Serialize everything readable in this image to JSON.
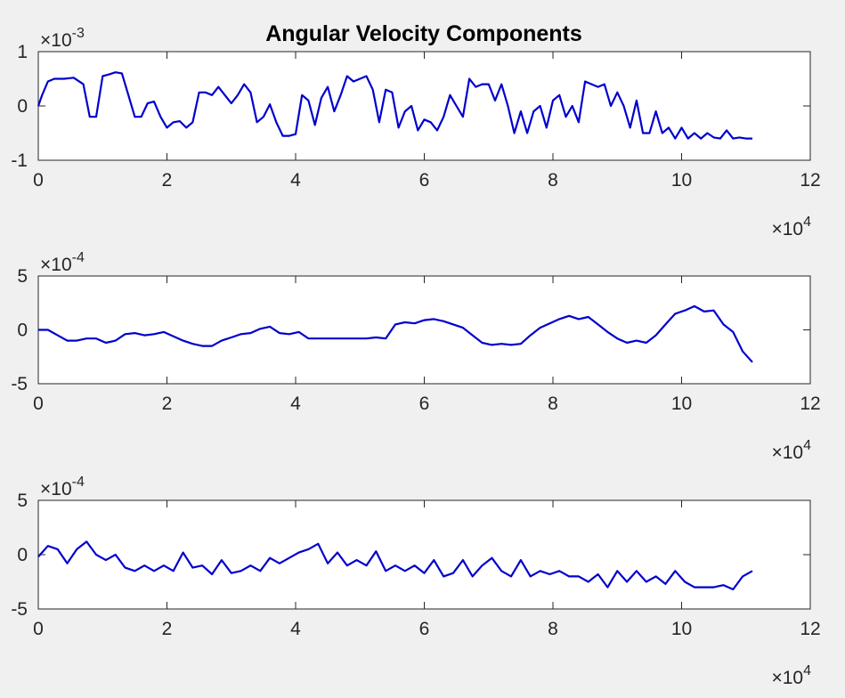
{
  "figure": {
    "background": "#f0f0f0",
    "line_color": "#0000cd",
    "axis_color": "#262626"
  },
  "chart_data": [
    {
      "type": "line",
      "title": "Angular Velocity Components",
      "xlim": [
        0,
        120000
      ],
      "ylim": [
        -0.001,
        0.001
      ],
      "xticks": [
        0,
        20000,
        40000,
        60000,
        80000,
        100000,
        120000
      ],
      "xtick_labels": [
        "0",
        "2",
        "4",
        "6",
        "8",
        "10",
        "12"
      ],
      "x_exponent_label": "×10",
      "x_exponent_power": "4",
      "yticks": [
        -0.001,
        0,
        0.001
      ],
      "ytick_labels": [
        "-1",
        "0",
        "1"
      ],
      "y_exponent_label": "×10",
      "y_exponent_power": "-3",
      "series": [
        {
          "x": [
            0,
            600,
            1500,
            2500,
            4000,
            5500,
            7000,
            8000,
            9000,
            10000,
            11000,
            12000,
            13000,
            14000,
            15000,
            16000,
            17000,
            18000,
            19000,
            20000,
            21000,
            22000,
            23000,
            24000,
            25000,
            26000,
            27000,
            28000,
            29000,
            30000,
            31000,
            32000,
            33000,
            34000,
            35000,
            36000,
            37000,
            38000,
            39000,
            40000,
            41000,
            42000,
            43000,
            44000,
            45000,
            46000,
            47000,
            48000,
            49000,
            50000,
            51000,
            52000,
            53000,
            54000,
            55000,
            56000,
            57000,
            58000,
            59000,
            60000,
            61000,
            62000,
            63000,
            64000,
            65000,
            66000,
            67000,
            68000,
            69000,
            70000,
            71000,
            72000,
            73000,
            74000,
            75000,
            76000,
            77000,
            78000,
            79000,
            80000,
            81000,
            82000,
            83000,
            84000,
            85000,
            86000,
            87000,
            88000,
            89000,
            90000,
            91000,
            92000,
            93000,
            94000,
            95000,
            96000,
            97000,
            98000,
            99000,
            100000,
            101000,
            102000,
            103000,
            104000,
            105000,
            106000,
            107000,
            108000,
            109000,
            110000,
            111000
          ],
          "y": [
            0.0,
            0.0002,
            0.00045,
            0.0005,
            0.0005,
            0.00052,
            0.0004,
            -0.0002,
            -0.0002,
            0.00055,
            0.00058,
            0.00062,
            0.0006,
            0.0002,
            -0.0002,
            -0.0002,
            5e-05,
            8e-05,
            -0.0002,
            -0.0004,
            -0.0003,
            -0.00028,
            -0.0004,
            -0.0003,
            0.00025,
            0.00025,
            0.0002,
            0.00035,
            0.0002,
            5e-05,
            0.0002,
            0.0004,
            0.00025,
            -0.0003,
            -0.0002,
            3e-05,
            -0.0003,
            -0.00055,
            -0.00055,
            -0.00052,
            0.0002,
            0.0001,
            -0.00035,
            0.00015,
            0.00035,
            -0.0001,
            0.0002,
            0.00055,
            0.00045,
            0.0005,
            0.00055,
            0.0003,
            -0.0003,
            0.0003,
            0.00025,
            -0.0004,
            -0.0001,
            0.0,
            -0.00045,
            -0.00025,
            -0.0003,
            -0.00045,
            -0.0002,
            0.0002,
            0.0,
            -0.0002,
            0.0005,
            0.00035,
            0.0004,
            0.0004,
            0.0001,
            0.0004,
            0.0,
            -0.0005,
            -0.0001,
            -0.0005,
            -0.0001,
            0.0,
            -0.0004,
            0.0001,
            0.0002,
            -0.0002,
            0.0,
            -0.0003,
            0.00045,
            0.0004,
            0.00035,
            0.0004,
            0.0,
            0.00025,
            0.0,
            -0.0004,
            0.0001,
            -0.0005,
            -0.0005,
            -0.0001,
            -0.0005,
            -0.0004,
            -0.0006,
            -0.0004,
            -0.0006,
            -0.0005,
            -0.0006,
            -0.0005,
            -0.00058,
            -0.0006,
            -0.00045,
            -0.0006,
            -0.00058,
            -0.0006,
            -0.0006
          ]
        }
      ]
    },
    {
      "type": "line",
      "xlim": [
        0,
        120000
      ],
      "ylim": [
        -0.0005,
        0.0005
      ],
      "xticks": [
        0,
        20000,
        40000,
        60000,
        80000,
        100000,
        120000
      ],
      "xtick_labels": [
        "0",
        "2",
        "4",
        "6",
        "8",
        "10",
        "12"
      ],
      "x_exponent_label": "×10",
      "x_exponent_power": "4",
      "yticks": [
        -0.0005,
        0,
        0.0005
      ],
      "ytick_labels": [
        "-5",
        "0",
        "5"
      ],
      "y_exponent_label": "×10",
      "y_exponent_power": "-4",
      "series": [
        {
          "x": [
            0,
            1500,
            3000,
            4500,
            6000,
            7500,
            9000,
            10500,
            12000,
            13500,
            15000,
            16500,
            18000,
            19500,
            21000,
            22500,
            24000,
            25500,
            27000,
            28500,
            30000,
            31500,
            33000,
            34500,
            36000,
            37500,
            39000,
            40500,
            42000,
            43500,
            45000,
            46500,
            48000,
            49500,
            51000,
            52500,
            54000,
            55500,
            57000,
            58500,
            60000,
            61500,
            63000,
            64500,
            66000,
            67500,
            69000,
            70500,
            72000,
            73500,
            75000,
            76500,
            78000,
            79500,
            81000,
            82500,
            84000,
            85500,
            87000,
            88500,
            90000,
            91500,
            93000,
            94500,
            96000,
            97500,
            99000,
            100500,
            102000,
            103500,
            105000,
            106500,
            108000,
            109500,
            111000
          ],
          "y": [
            0.0,
            0.0,
            -5e-05,
            -0.0001,
            -0.0001,
            -8e-05,
            -8e-05,
            -0.00012,
            -0.0001,
            -4e-05,
            -3e-05,
            -5e-05,
            -4e-05,
            -2e-05,
            -6e-05,
            -0.0001,
            -0.00013,
            -0.00015,
            -0.00015,
            -0.0001,
            -7e-05,
            -4e-05,
            -3e-05,
            1e-05,
            3e-05,
            -3e-05,
            -4e-05,
            -2e-05,
            -8e-05,
            -8e-05,
            -8e-05,
            -8e-05,
            -8e-05,
            -8e-05,
            -8e-05,
            -7e-05,
            -8e-05,
            5e-05,
            7e-05,
            6e-05,
            9e-05,
            0.0001,
            8e-05,
            5e-05,
            2e-05,
            -5e-05,
            -0.00012,
            -0.00014,
            -0.00013,
            -0.00014,
            -0.00013,
            -5e-05,
            2e-05,
            6e-05,
            0.0001,
            0.00013,
            0.0001,
            0.00012,
            5e-05,
            -2e-05,
            -8e-05,
            -0.00012,
            -0.0001,
            -0.00012,
            -5e-05,
            5e-05,
            0.00015,
            0.00018,
            0.00022,
            0.00017,
            0.00018,
            5e-05,
            -2e-05,
            -0.0002,
            -0.0003
          ]
        }
      ]
    },
    {
      "type": "line",
      "xlim": [
        0,
        120000
      ],
      "ylim": [
        -0.0005,
        0.0005
      ],
      "xticks": [
        0,
        20000,
        40000,
        60000,
        80000,
        100000,
        120000
      ],
      "xtick_labels": [
        "0",
        "2",
        "4",
        "6",
        "8",
        "10",
        "12"
      ],
      "x_exponent_label": "×10",
      "x_exponent_power": "4",
      "yticks": [
        -0.0005,
        0,
        0.0005
      ],
      "ytick_labels": [
        "-5",
        "0",
        "5"
      ],
      "y_exponent_label": "×10",
      "y_exponent_power": "-4",
      "series": [
        {
          "x": [
            0,
            1500,
            3000,
            4500,
            6000,
            7500,
            9000,
            10500,
            12000,
            13500,
            15000,
            16500,
            18000,
            19500,
            21000,
            22500,
            24000,
            25500,
            27000,
            28500,
            30000,
            31500,
            33000,
            34500,
            36000,
            37500,
            39000,
            40500,
            42000,
            43500,
            45000,
            46500,
            48000,
            49500,
            51000,
            52500,
            54000,
            55500,
            57000,
            58500,
            60000,
            61500,
            63000,
            64500,
            66000,
            67500,
            69000,
            70500,
            72000,
            73500,
            75000,
            76500,
            78000,
            79500,
            81000,
            82500,
            84000,
            85500,
            87000,
            88500,
            90000,
            91500,
            93000,
            94500,
            96000,
            97500,
            99000,
            100500,
            102000,
            103500,
            105000,
            106500,
            108000,
            109500,
            111000
          ],
          "y": [
            -2e-05,
            8e-05,
            5e-05,
            -8e-05,
            5e-05,
            0.00012,
            0.0,
            -5e-05,
            0.0,
            -0.00012,
            -0.00015,
            -0.0001,
            -0.00015,
            -0.0001,
            -0.00015,
            2e-05,
            -0.00012,
            -0.0001,
            -0.00018,
            -5e-05,
            -0.00017,
            -0.00015,
            -0.0001,
            -0.00015,
            -3e-05,
            -8e-05,
            -3e-05,
            2e-05,
            5e-05,
            0.0001,
            -8e-05,
            2e-05,
            -0.0001,
            -5e-05,
            -0.0001,
            3e-05,
            -0.00015,
            -0.0001,
            -0.00015,
            -0.0001,
            -0.00017,
            -5e-05,
            -0.0002,
            -0.00017,
            -5e-05,
            -0.0002,
            -0.0001,
            -3e-05,
            -0.00015,
            -0.0002,
            -5e-05,
            -0.0002,
            -0.00015,
            -0.00018,
            -0.00015,
            -0.0002,
            -0.0002,
            -0.00025,
            -0.00018,
            -0.0003,
            -0.00015,
            -0.00025,
            -0.00015,
            -0.00025,
            -0.0002,
            -0.00027,
            -0.00015,
            -0.00025,
            -0.0003,
            -0.0003,
            -0.0003,
            -0.00028,
            -0.00032,
            -0.0002,
            -0.00015
          ]
        }
      ]
    }
  ]
}
